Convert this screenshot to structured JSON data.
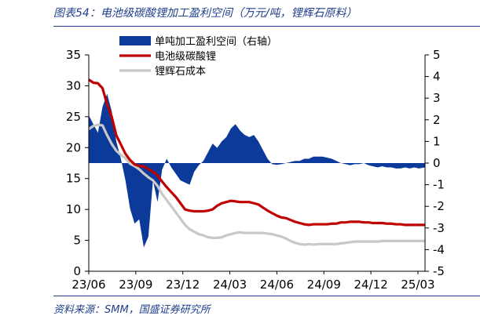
{
  "title": "图表54：电池级碳酸锂加工盈利空间（万元/吨，锂辉石原料）",
  "source": "资料来源：SMM，国盛证券研究所",
  "colors": {
    "margin": "#0b3a9a",
    "lithium": "#c00000",
    "cost": "#c8c8c8",
    "text_blue": "#1f3f8c"
  },
  "chart_data": {
    "type": "line",
    "title": "图表54：电池级碳酸锂加工盈利空间（万元/吨，锂辉石原料）",
    "x_tick_labels": [
      "23/06",
      "23/09",
      "23/12",
      "24/03",
      "24/06",
      "24/09",
      "24/12",
      "25/03"
    ],
    "y_left": {
      "ylim": [
        0,
        35
      ],
      "ticks": [
        "0",
        "5",
        "10",
        "15",
        "20",
        "25",
        "30",
        "35"
      ]
    },
    "y_right": {
      "ylim": [
        -5,
        5
      ],
      "ticks": [
        "-5",
        "-4",
        "-3",
        "-2",
        "-1",
        "0",
        "1",
        "2",
        "3",
        "4",
        "5"
      ]
    },
    "legend": {
      "position": "top-left"
    },
    "x_months": [
      0,
      0.3,
      0.6,
      0.9,
      1.2,
      1.5,
      1.8,
      2.1,
      2.4,
      2.7,
      3.0,
      3.3,
      3.6,
      3.9,
      4.2,
      4.5,
      4.8,
      5.1,
      5.4,
      5.7,
      6.0,
      6.3,
      6.6,
      6.9,
      7.2,
      7.5,
      7.8,
      8.1,
      8.4,
      8.7,
      9.0,
      9.3,
      9.6,
      9.9,
      10.2,
      10.5,
      10.8,
      11.1,
      11.4,
      11.7,
      12.0,
      12.3,
      12.6,
      12.9,
      13.2,
      13.5,
      13.8,
      14.1,
      14.4,
      14.7,
      15.0,
      15.3,
      15.6,
      15.9,
      16.2,
      16.5,
      16.8,
      17.1,
      17.4,
      17.7,
      18.0,
      18.3,
      18.6,
      18.9,
      19.2,
      19.5,
      19.8,
      20.1,
      20.4,
      20.7,
      21.0,
      21.3,
      21.6,
      22.0
    ],
    "series": [
      {
        "name": "单吨加工盈利空间（右轴）",
        "type": "area",
        "axis": "right",
        "values": [
          2.2,
          1.8,
          1.4,
          2.6,
          3.2,
          2.4,
          1.0,
          0.2,
          -0.8,
          -2.1,
          -2.8,
          -2.6,
          -3.9,
          -3.4,
          -0.8,
          -1.8,
          -0.3,
          0.2,
          -0.2,
          -0.5,
          -0.8,
          -0.9,
          -1.0,
          -0.4,
          -0.1,
          0.1,
          0.5,
          0.9,
          0.7,
          1.0,
          1.2,
          1.6,
          1.8,
          1.5,
          1.3,
          1.2,
          1.3,
          1.0,
          0.6,
          0.2,
          -0.05,
          -0.08,
          -0.05,
          0.0,
          0.05,
          0.1,
          0.1,
          0.2,
          0.2,
          0.3,
          0.3,
          0.3,
          0.25,
          0.2,
          0.1,
          0.0,
          -0.05,
          -0.1,
          -0.05,
          -0.05,
          0.0,
          -0.1,
          -0.15,
          -0.2,
          -0.15,
          -0.2,
          -0.2,
          -0.25,
          -0.25,
          -0.2,
          -0.25,
          -0.2,
          -0.25,
          -0.2
        ]
      },
      {
        "name": "电池级碳酸锂",
        "type": "line",
        "axis": "left",
        "values": [
          31.0,
          30.5,
          30.4,
          29.6,
          27.0,
          25.0,
          22.0,
          20.5,
          19.0,
          18.0,
          17.3,
          17.0,
          17.0,
          16.5,
          16.1,
          15.5,
          14.5,
          13.6,
          12.8,
          12.0,
          11.0,
          10.0,
          9.8,
          9.7,
          9.7,
          9.7,
          9.8,
          10.0,
          10.6,
          11.0,
          11.2,
          11.4,
          11.3,
          11.2,
          11.2,
          11.2,
          11.0,
          10.8,
          10.3,
          9.8,
          9.4,
          9.0,
          8.7,
          8.6,
          8.3,
          8.0,
          7.8,
          7.6,
          7.5,
          7.6,
          7.6,
          7.6,
          7.6,
          7.7,
          7.7,
          7.9,
          7.9,
          8.0,
          8.0,
          8.0,
          7.9,
          7.9,
          7.8,
          7.8,
          7.8,
          7.7,
          7.7,
          7.6,
          7.6,
          7.5,
          7.5,
          7.5,
          7.5,
          7.5
        ]
      },
      {
        "name": "锂辉石成本",
        "type": "line",
        "axis": "left",
        "values": [
          23.0,
          23.5,
          23.7,
          23.6,
          22.0,
          20.6,
          19.5,
          18.8,
          18.3,
          17.4,
          17.0,
          16.5,
          15.8,
          15.2,
          14.7,
          13.8,
          12.5,
          11.5,
          10.5,
          9.5,
          8.5,
          7.5,
          6.8,
          6.4,
          6.0,
          5.8,
          5.5,
          5.4,
          5.4,
          5.5,
          5.8,
          6.0,
          6.2,
          6.3,
          6.2,
          6.2,
          6.2,
          6.2,
          6.2,
          6.1,
          6.0,
          5.8,
          5.6,
          5.3,
          4.9,
          4.6,
          4.4,
          4.3,
          4.4,
          4.3,
          4.4,
          4.4,
          4.4,
          4.4,
          4.4,
          4.5,
          4.6,
          4.7,
          4.8,
          4.8,
          4.8,
          4.8,
          4.8,
          4.8,
          4.9,
          4.9,
          4.9,
          4.9,
          4.9,
          4.9,
          4.9,
          4.9,
          4.9,
          4.9
        ]
      }
    ]
  }
}
